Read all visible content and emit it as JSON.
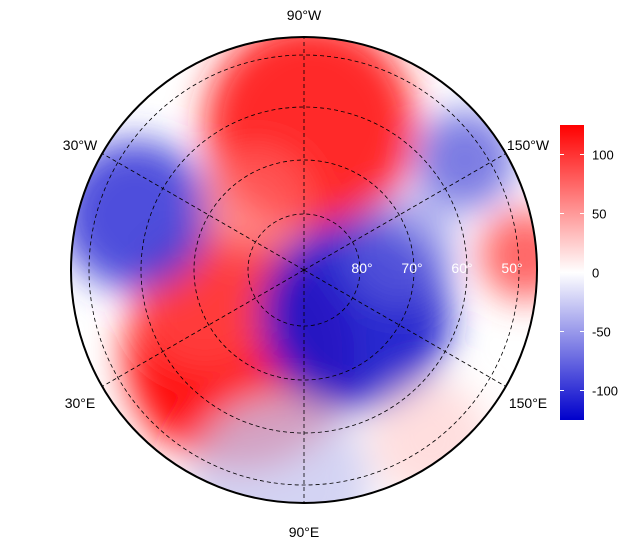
{
  "chart_data": {
    "type": "heatmap",
    "projection": "north-polar-stereographic",
    "longitude_labels": [
      "90°W",
      "30°W",
      "150°W",
      "30°E",
      "150°E",
      "90°E"
    ],
    "latitude_labels": [
      "80°",
      "70°",
      "60°",
      "50°"
    ],
    "colorbar": {
      "ticks": [
        100,
        50,
        0,
        -50,
        -100
      ],
      "range": [
        -125,
        125
      ],
      "colors": {
        "low": "#0000cc",
        "mid": "#ffffff",
        "high": "#ff0000"
      }
    },
    "grid": true
  }
}
